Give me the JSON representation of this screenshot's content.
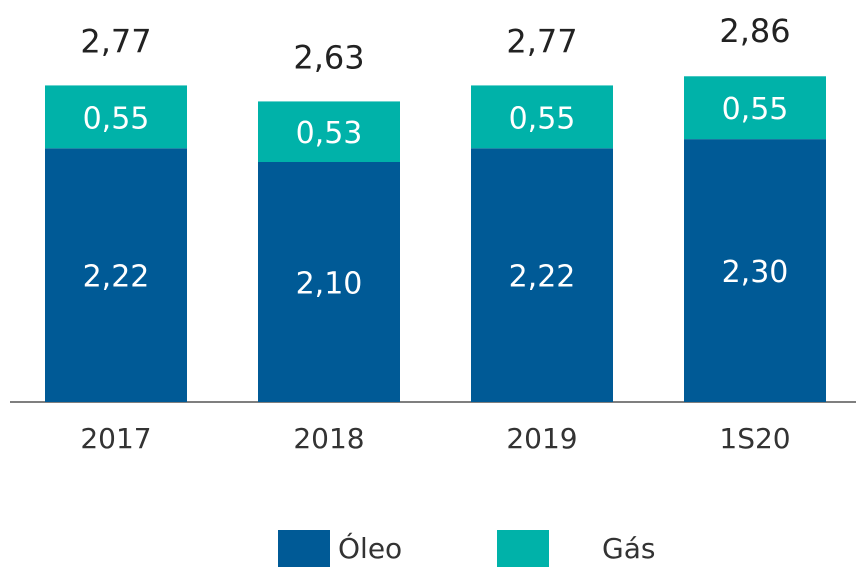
{
  "chart_data": {
    "type": "stacked_bar",
    "categories": [
      "2017",
      "2018",
      "2019",
      "1S20"
    ],
    "series": [
      {
        "name": "Óleo",
        "color": "#005a96",
        "values": [
          2.22,
          2.1,
          2.22,
          2.3
        ],
        "value_labels": [
          "2,22",
          "2,10",
          "2,22",
          "2,30"
        ]
      },
      {
        "name": "Gás",
        "color": "#00b2a9",
        "values": [
          0.55,
          0.53,
          0.55,
          0.55
        ],
        "value_labels": [
          "0,55",
          "0,53",
          "0,55",
          "0,55"
        ]
      }
    ],
    "totals": [
      2.77,
      2.63,
      2.77,
      2.86
    ],
    "total_labels": [
      "2,77",
      "2,63",
      "2,77",
      "2,86"
    ],
    "ylim": [
      0,
      3.5
    ],
    "legend": "bottom"
  }
}
